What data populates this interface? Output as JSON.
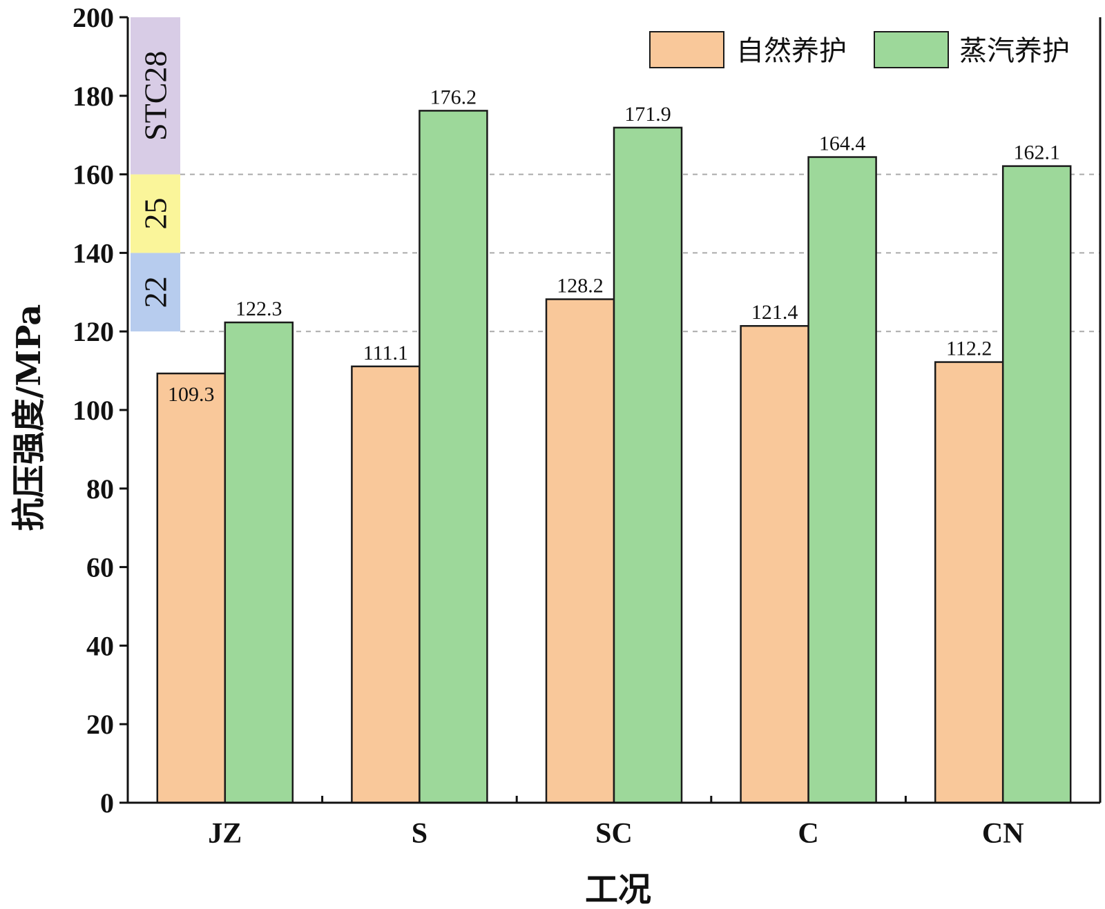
{
  "chart_data": {
    "type": "bar",
    "categories": [
      "JZ",
      "S",
      "SC",
      "C",
      "CN"
    ],
    "series": [
      {
        "name": "自然养护",
        "values": [
          109.3,
          111.1,
          128.2,
          121.4,
          112.2
        ],
        "color": "#F9C89A"
      },
      {
        "name": "蒸汽养护",
        "values": [
          122.3,
          176.2,
          171.9,
          164.4,
          162.1
        ],
        "color": "#9DD89A"
      }
    ],
    "data_labels": {
      "natural": [
        "109.3",
        "111.1",
        "128.2",
        "121.4",
        "112.2"
      ],
      "steam": [
        "122.3",
        "176.2",
        "171.9",
        "164.4",
        "162.1"
      ]
    },
    "xlabel": "工况",
    "ylabel": "抗压强度/MPa",
    "ylim": [
      0,
      200
    ],
    "yticks": [
      0,
      20,
      40,
      60,
      80,
      100,
      120,
      140,
      160,
      180,
      200
    ],
    "ytick_labels": [
      "0",
      "20",
      "40",
      "60",
      "80",
      "100",
      "120",
      "140",
      "160",
      "180",
      "200"
    ],
    "reference_lines": [
      120,
      140,
      160
    ],
    "grade_bands": [
      {
        "label": "22",
        "from": 120,
        "to": 140,
        "color": "#B7CCEE"
      },
      {
        "label": "25",
        "from": 140,
        "to": 160,
        "color": "#FAF59A"
      },
      {
        "label": "STC28",
        "from": 160,
        "to": 200,
        "color": "#D8CCE6"
      }
    ],
    "legend_position": "top-right",
    "bar_edge_color": "#1a1a1a"
  }
}
